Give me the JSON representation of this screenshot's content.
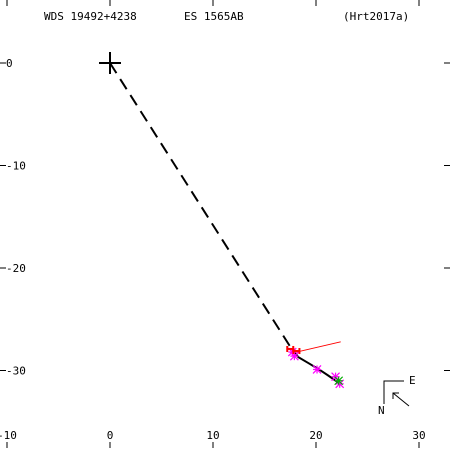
{
  "header": {
    "wds_id": "WDS 19492+4238",
    "discoverer": "ES 1565AB",
    "reference": "(Hrt2017a)"
  },
  "chart_data": {
    "type": "scatter",
    "title": "",
    "xlabel": "",
    "ylabel": "",
    "xlim": [
      -10,
      33
    ],
    "ylim": [
      -36.5,
      5
    ],
    "grid": false,
    "x_ticks": [
      -10,
      0,
      10,
      20,
      30
    ],
    "x_tick_labels": [
      "-10",
      "0",
      "10",
      "20",
      "30"
    ],
    "y_ticks": [
      0,
      -10,
      -20,
      -30
    ],
    "y_tick_labels": [
      "0",
      "-10",
      "-20",
      "-30"
    ],
    "primary": {
      "x": 0,
      "y": 0
    },
    "node_line": {
      "x": [
        0,
        17.7
      ],
      "y": [
        0,
        -28.0
      ]
    },
    "orbit_arc": {
      "x": [
        17.7,
        18.3,
        19.3,
        20.3,
        21.2,
        22.2
      ],
      "y": [
        -28.0,
        -28.7,
        -29.3,
        -29.9,
        -30.5,
        -31.2
      ]
    },
    "red_residual": {
      "x": [
        17.7,
        22.4
      ],
      "y": [
        -28.3,
        -27.2
      ]
    },
    "magenta_stars": {
      "x": [
        17.7,
        17.9,
        20.1,
        21.9,
        22.3
      ],
      "y": [
        -28.2,
        -28.6,
        -29.9,
        -30.6,
        -31.3
      ]
    },
    "green_stars": {
      "x": [
        22.2
      ],
      "y": [
        -31.0
      ]
    },
    "red_markers": {
      "x": [
        17.5,
        18.1
      ],
      "y": [
        -27.9,
        -28.1
      ]
    },
    "orientation": {
      "east_label": "E",
      "north_label": "N"
    },
    "colors": {
      "node_line": "#000000",
      "residual": "#ff0000",
      "star_magenta": "#ff00ff",
      "star_green": "#00aa00"
    }
  }
}
